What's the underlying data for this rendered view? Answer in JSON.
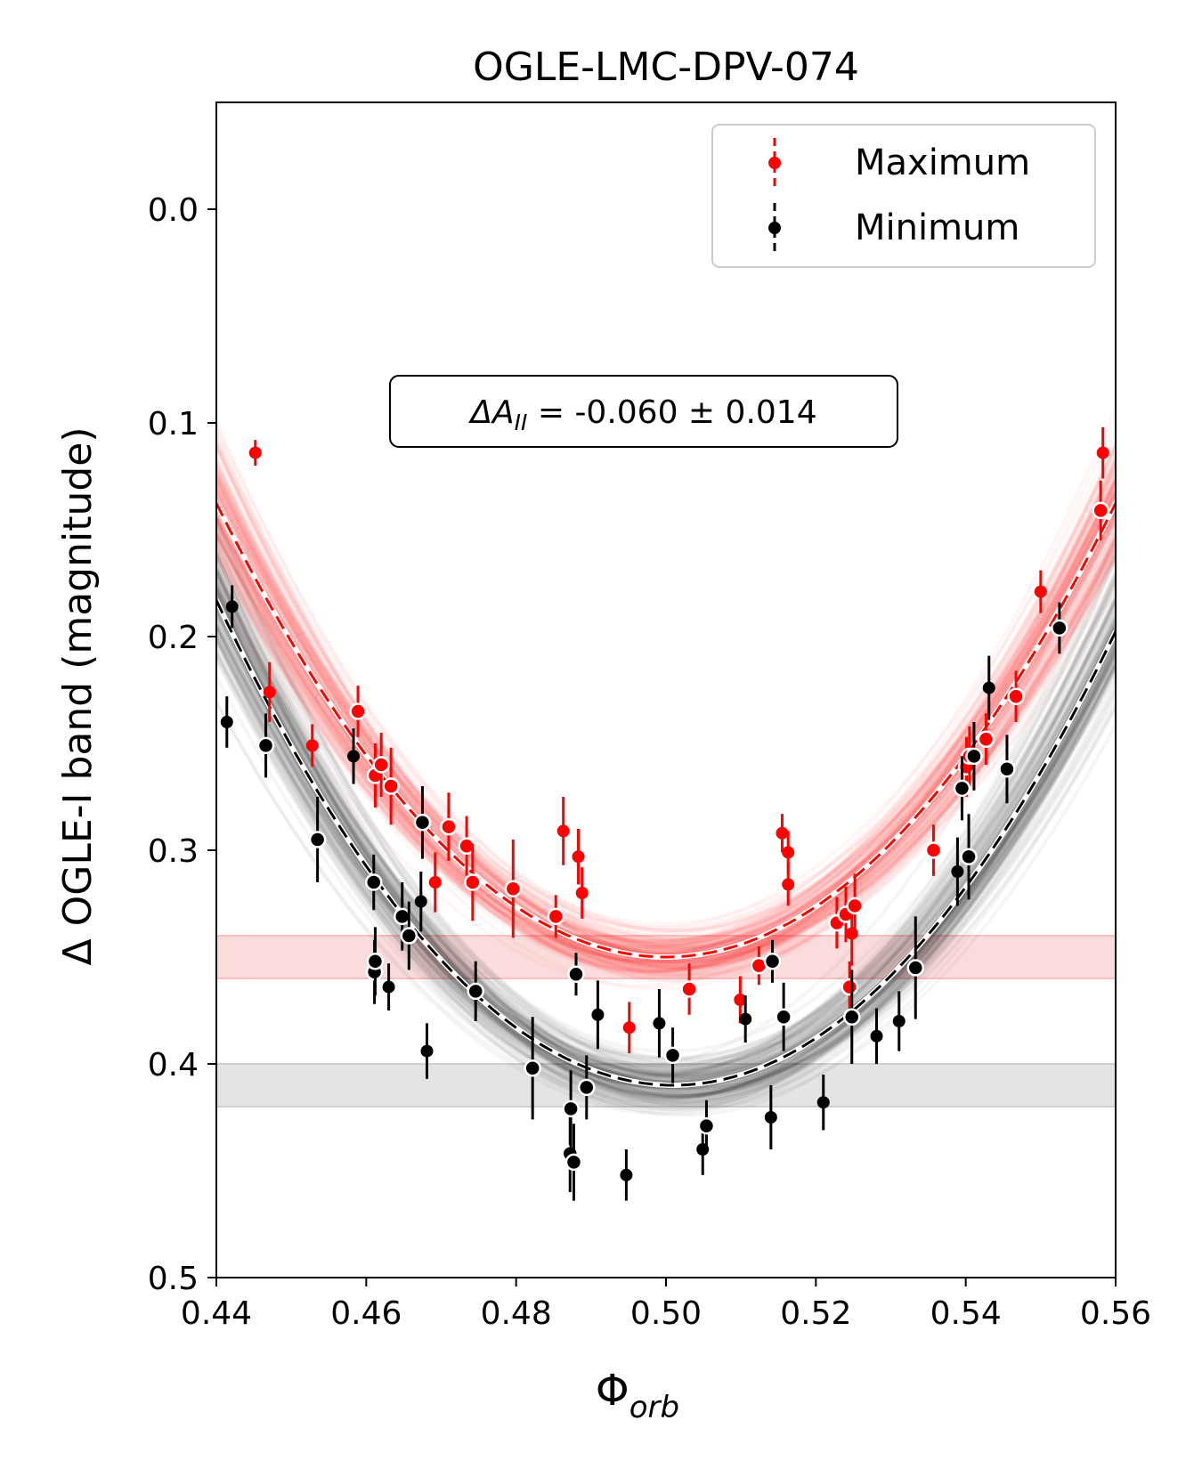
{
  "chart_data": {
    "type": "scatter",
    "title": "OGLE-LMC-DPV-074",
    "xlabel_main": "Φ",
    "xlabel_sub": "orb",
    "ylabel": "Δ OGLE-I band (magnitude)",
    "xlim": [
      0.44,
      0.56
    ],
    "ylim": [
      0.5,
      -0.05
    ],
    "y_inverted": true,
    "grid": false,
    "legend_position": "top-right",
    "xticks": [
      "0.44",
      "0.46",
      "0.48",
      "0.50",
      "0.52",
      "0.54",
      "0.56"
    ],
    "yticks": [
      "0.0",
      "0.1",
      "0.2",
      "0.3",
      "0.4",
      "0.5"
    ],
    "annotation": {
      "prefix": "ΔA",
      "subscript": "II",
      "text": " = -0.060 ± 0.014"
    },
    "bands": [
      {
        "name": "Maximum",
        "y_min": 0.34,
        "y_max": 0.36,
        "color": "#f7b2b2"
      },
      {
        "name": "Minimum",
        "y_min": 0.4,
        "y_max": 0.42,
        "color": "#c4c4c4"
      }
    ],
    "fits": [
      {
        "name": "Maximum",
        "vertex_x": 0.5,
        "vertex_y": 0.35,
        "curvature": 59,
        "color": "#ff0000"
      },
      {
        "name": "Minimum",
        "vertex_x": 0.501,
        "vertex_y": 0.41,
        "curvature": 61,
        "color": "#000000"
      }
    ],
    "series": [
      {
        "name": "Maximum",
        "color": "#ff0000",
        "points": [
          {
            "x": 0.4452,
            "y": 0.114,
            "err": 0.006,
            "ring": false
          },
          {
            "x": 0.4471,
            "y": 0.226,
            "err": 0.014,
            "ring": false
          },
          {
            "x": 0.4528,
            "y": 0.251,
            "err": 0.01,
            "ring": false
          },
          {
            "x": 0.4589,
            "y": 0.235,
            "err": 0.012,
            "ring": true
          },
          {
            "x": 0.4612,
            "y": 0.265,
            "err": 0.015,
            "ring": true
          },
          {
            "x": 0.462,
            "y": 0.26,
            "err": 0.015,
            "ring": true
          },
          {
            "x": 0.4633,
            "y": 0.27,
            "err": 0.018,
            "ring": true
          },
          {
            "x": 0.4692,
            "y": 0.315,
            "err": 0.014,
            "ring": false
          },
          {
            "x": 0.471,
            "y": 0.289,
            "err": 0.016,
            "ring": true
          },
          {
            "x": 0.4734,
            "y": 0.298,
            "err": 0.014,
            "ring": true
          },
          {
            "x": 0.4742,
            "y": 0.315,
            "err": 0.018,
            "ring": true
          },
          {
            "x": 0.4796,
            "y": 0.318,
            "err": 0.023,
            "ring": true
          },
          {
            "x": 0.4853,
            "y": 0.331,
            "err": 0.01,
            "ring": true
          },
          {
            "x": 0.4863,
            "y": 0.291,
            "err": 0.016,
            "ring": false
          },
          {
            "x": 0.4883,
            "y": 0.303,
            "err": 0.013,
            "ring": false
          },
          {
            "x": 0.4888,
            "y": 0.32,
            "err": 0.012,
            "ring": false
          },
          {
            "x": 0.4951,
            "y": 0.383,
            "err": 0.012,
            "ring": false
          },
          {
            "x": 0.5031,
            "y": 0.365,
            "err": 0.012,
            "ring": true
          },
          {
            "x": 0.5099,
            "y": 0.37,
            "err": 0.011,
            "ring": false
          },
          {
            "x": 0.5124,
            "y": 0.354,
            "err": 0.009,
            "ring": true
          },
          {
            "x": 0.5155,
            "y": 0.292,
            "err": 0.009,
            "ring": false
          },
          {
            "x": 0.5163,
            "y": 0.301,
            "err": 0.01,
            "ring": false
          },
          {
            "x": 0.5163,
            "y": 0.316,
            "err": 0.01,
            "ring": false
          },
          {
            "x": 0.5228,
            "y": 0.334,
            "err": 0.012,
            "ring": true
          },
          {
            "x": 0.524,
            "y": 0.33,
            "err": 0.013,
            "ring": true
          },
          {
            "x": 0.5245,
            "y": 0.364,
            "err": 0.012,
            "ring": true
          },
          {
            "x": 0.5248,
            "y": 0.339,
            "err": 0.015,
            "ring": false
          },
          {
            "x": 0.5252,
            "y": 0.326,
            "err": 0.015,
            "ring": true
          },
          {
            "x": 0.5357,
            "y": 0.3,
            "err": 0.012,
            "ring": true
          },
          {
            "x": 0.5401,
            "y": 0.261,
            "err": 0.014,
            "ring": true
          },
          {
            "x": 0.5405,
            "y": 0.256,
            "err": 0.014,
            "ring": true
          },
          {
            "x": 0.5427,
            "y": 0.248,
            "err": 0.012,
            "ring": true
          },
          {
            "x": 0.5467,
            "y": 0.228,
            "err": 0.012,
            "ring": true
          },
          {
            "x": 0.55,
            "y": 0.179,
            "err": 0.01,
            "ring": false
          },
          {
            "x": 0.558,
            "y": 0.141,
            "err": 0.014,
            "ring": true
          },
          {
            "x": 0.5583,
            "y": 0.114,
            "err": 0.012,
            "ring": false
          }
        ]
      },
      {
        "name": "Minimum",
        "color": "#000000",
        "points": [
          {
            "x": 0.4414,
            "y": 0.24,
            "err": 0.012,
            "ring": false
          },
          {
            "x": 0.4421,
            "y": 0.186,
            "err": 0.01,
            "ring": false
          },
          {
            "x": 0.4466,
            "y": 0.251,
            "err": 0.015,
            "ring": true
          },
          {
            "x": 0.4535,
            "y": 0.295,
            "err": 0.02,
            "ring": true
          },
          {
            "x": 0.4583,
            "y": 0.256,
            "err": 0.013,
            "ring": false
          },
          {
            "x": 0.461,
            "y": 0.315,
            "err": 0.013,
            "ring": true
          },
          {
            "x": 0.4611,
            "y": 0.357,
            "err": 0.015,
            "ring": true
          },
          {
            "x": 0.4612,
            "y": 0.352,
            "err": 0.016,
            "ring": true
          },
          {
            "x": 0.463,
            "y": 0.364,
            "err": 0.011,
            "ring": false
          },
          {
            "x": 0.4648,
            "y": 0.331,
            "err": 0.016,
            "ring": true
          },
          {
            "x": 0.4657,
            "y": 0.34,
            "err": 0.016,
            "ring": true
          },
          {
            "x": 0.4673,
            "y": 0.324,
            "err": 0.014,
            "ring": false
          },
          {
            "x": 0.4675,
            "y": 0.287,
            "err": 0.017,
            "ring": true
          },
          {
            "x": 0.4681,
            "y": 0.394,
            "err": 0.013,
            "ring": false
          },
          {
            "x": 0.4746,
            "y": 0.366,
            "err": 0.014,
            "ring": true
          },
          {
            "x": 0.4822,
            "y": 0.402,
            "err": 0.024,
            "ring": true
          },
          {
            "x": 0.4872,
            "y": 0.442,
            "err": 0.018,
            "ring": true
          },
          {
            "x": 0.4873,
            "y": 0.421,
            "err": 0.018,
            "ring": true
          },
          {
            "x": 0.4877,
            "y": 0.446,
            "err": 0.018,
            "ring": true
          },
          {
            "x": 0.488,
            "y": 0.358,
            "err": 0.01,
            "ring": true
          },
          {
            "x": 0.4894,
            "y": 0.411,
            "err": 0.015,
            "ring": true
          },
          {
            "x": 0.4909,
            "y": 0.377,
            "err": 0.016,
            "ring": false
          },
          {
            "x": 0.4947,
            "y": 0.452,
            "err": 0.012,
            "ring": false
          },
          {
            "x": 0.4991,
            "y": 0.381,
            "err": 0.016,
            "ring": false
          },
          {
            "x": 0.5009,
            "y": 0.396,
            "err": 0.013,
            "ring": true
          },
          {
            "x": 0.5049,
            "y": 0.44,
            "err": 0.012,
            "ring": false
          },
          {
            "x": 0.5054,
            "y": 0.429,
            "err": 0.012,
            "ring": true
          },
          {
            "x": 0.5106,
            "y": 0.379,
            "err": 0.011,
            "ring": false
          },
          {
            "x": 0.514,
            "y": 0.425,
            "err": 0.015,
            "ring": false
          },
          {
            "x": 0.5142,
            "y": 0.352,
            "err": 0.01,
            "ring": true
          },
          {
            "x": 0.5157,
            "y": 0.378,
            "err": 0.016,
            "ring": true
          },
          {
            "x": 0.521,
            "y": 0.418,
            "err": 0.013,
            "ring": false
          },
          {
            "x": 0.5248,
            "y": 0.378,
            "err": 0.022,
            "ring": true
          },
          {
            "x": 0.5281,
            "y": 0.387,
            "err": 0.013,
            "ring": false
          },
          {
            "x": 0.5311,
            "y": 0.38,
            "err": 0.014,
            "ring": false
          },
          {
            "x": 0.5333,
            "y": 0.355,
            "err": 0.024,
            "ring": true
          },
          {
            "x": 0.5389,
            "y": 0.31,
            "err": 0.016,
            "ring": false
          },
          {
            "x": 0.5395,
            "y": 0.271,
            "err": 0.015,
            "ring": true
          },
          {
            "x": 0.5404,
            "y": 0.303,
            "err": 0.02,
            "ring": true
          },
          {
            "x": 0.5411,
            "y": 0.256,
            "err": 0.016,
            "ring": true
          },
          {
            "x": 0.5431,
            "y": 0.224,
            "err": 0.015,
            "ring": false
          },
          {
            "x": 0.5455,
            "y": 0.262,
            "err": 0.016,
            "ring": true
          },
          {
            "x": 0.5525,
            "y": 0.196,
            "err": 0.012,
            "ring": true
          }
        ]
      }
    ]
  }
}
